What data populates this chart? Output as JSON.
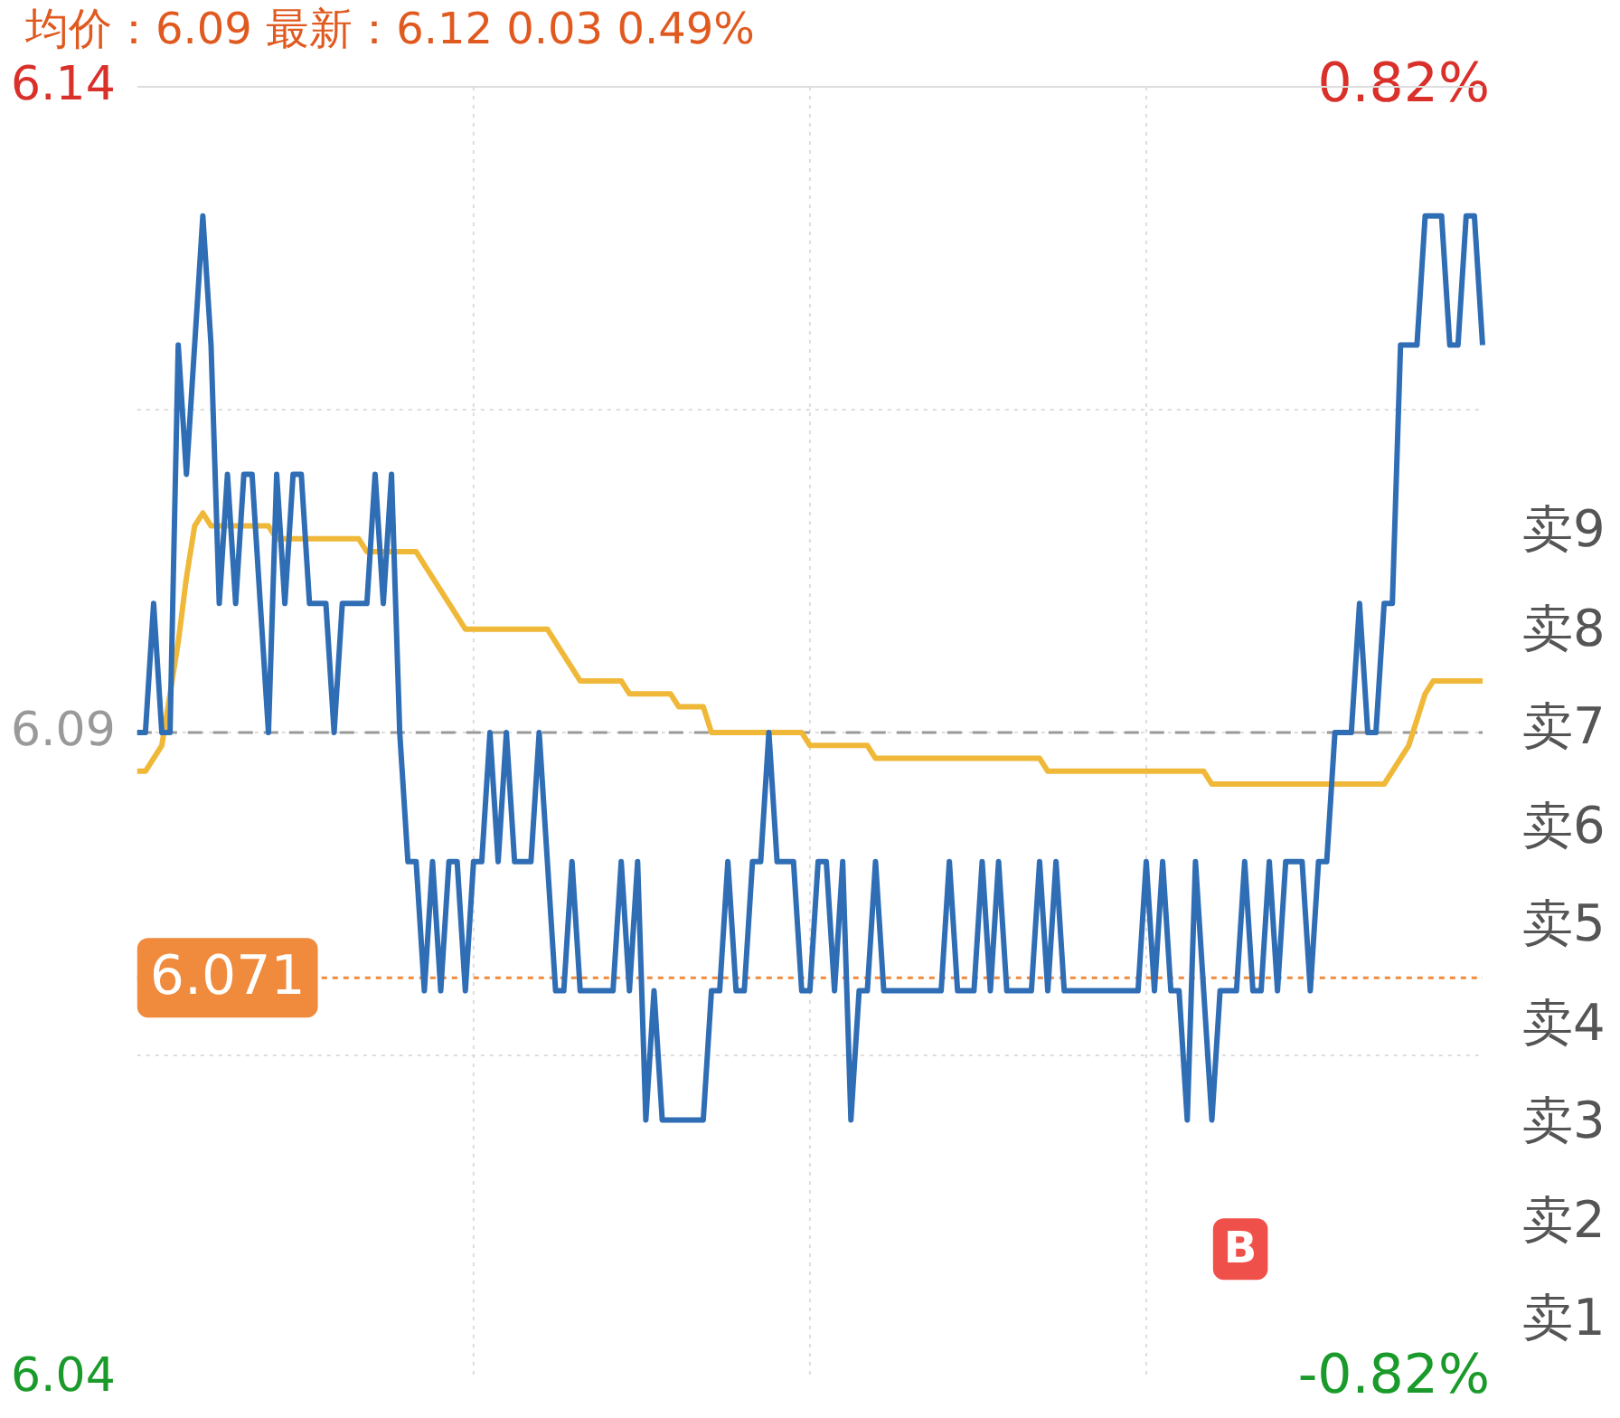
{
  "chart_data": {
    "type": "line",
    "title": "均价：6.09 最新：6.12 0.03 0.49%",
    "categories": [
      null,
      null,
      null,
      null,
      null,
      null,
      null,
      null,
      null,
      null,
      null,
      null,
      null,
      null,
      null,
      null,
      null,
      null,
      null,
      null,
      null,
      null,
      null,
      null,
      null,
      null,
      null,
      null,
      null,
      null,
      null,
      null,
      null,
      null,
      null,
      null,
      null,
      null,
      null,
      null,
      null,
      null,
      null,
      null,
      null,
      null,
      null,
      null,
      null,
      null,
      null,
      null,
      null,
      null,
      null,
      null,
      null,
      null,
      null,
      null,
      null,
      null,
      null,
      null,
      null,
      null,
      null,
      null,
      null,
      null,
      null,
      null,
      null,
      null,
      null,
      null,
      null,
      null,
      null,
      null,
      null,
      null,
      null,
      null,
      null,
      null,
      null,
      null,
      null,
      null,
      null,
      null,
      null,
      null,
      null,
      null,
      null,
      null,
      null,
      null,
      null,
      null,
      null,
      null,
      null,
      null,
      null,
      null,
      null,
      null,
      null,
      null,
      null,
      null,
      null,
      null,
      null,
      null,
      null,
      null,
      null,
      null,
      null,
      null,
      null,
      null,
      null,
      null,
      null,
      null,
      null,
      null,
      null,
      null,
      null,
      null,
      null,
      null,
      null,
      null,
      null,
      null,
      null,
      null,
      null,
      null,
      null,
      null,
      null,
      null,
      null,
      null,
      null,
      null,
      null,
      null,
      null,
      null,
      null,
      null,
      null,
      null,
      null,
      null,
      null
    ],
    "series": [
      {
        "color": "#2f6db5",
        "values": [
          6.09,
          6.09,
          6.1,
          6.09,
          6.09,
          6.12,
          6.11,
          6.12,
          6.13,
          6.12,
          6.1,
          6.11,
          6.1,
          6.11,
          6.11,
          6.1,
          6.09,
          6.11,
          6.1,
          6.11,
          6.11,
          6.1,
          6.1,
          6.1,
          6.09,
          6.1,
          6.1,
          6.1,
          6.1,
          6.11,
          6.1,
          6.11,
          6.09,
          6.08,
          6.08,
          6.07,
          6.08,
          6.07,
          6.08,
          6.08,
          6.07,
          6.08,
          6.08,
          6.09,
          6.08,
          6.09,
          6.08,
          6.08,
          6.08,
          6.09,
          6.08,
          6.07,
          6.07,
          6.08,
          6.07,
          6.07,
          6.07,
          6.07,
          6.07,
          6.08,
          6.07,
          6.08,
          6.06,
          6.07,
          6.06,
          6.06,
          6.06,
          6.06,
          6.06,
          6.06,
          6.07,
          6.07,
          6.08,
          6.07,
          6.07,
          6.08,
          6.08,
          6.09,
          6.08,
          6.08,
          6.08,
          6.07,
          6.07,
          6.08,
          6.08,
          6.07,
          6.08,
          6.06,
          6.07,
          6.07,
          6.08,
          6.07,
          6.07,
          6.07,
          6.07,
          6.07,
          6.07,
          6.07,
          6.07,
          6.08,
          6.07,
          6.07,
          6.07,
          6.08,
          6.07,
          6.08,
          6.07,
          6.07,
          6.07,
          6.07,
          6.08,
          6.07,
          6.08,
          6.07,
          6.07,
          6.07,
          6.07,
          6.07,
          6.07,
          6.07,
          6.07,
          6.07,
          6.07,
          6.08,
          6.07,
          6.08,
          6.07,
          6.07,
          6.06,
          6.08,
          6.07,
          6.06,
          6.07,
          6.07,
          6.07,
          6.08,
          6.07,
          6.07,
          6.08,
          6.07,
          6.08,
          6.08,
          6.08,
          6.07,
          6.08,
          6.08,
          6.09,
          6.09,
          6.09,
          6.1,
          6.09,
          6.09,
          6.1,
          6.1,
          6.12,
          6.12,
          6.12,
          6.13,
          6.13,
          6.13,
          6.12,
          6.12,
          6.13,
          6.13,
          6.12
        ]
      },
      {
        "color": "#f0b838",
        "values": [
          6.087,
          6.087,
          6.088,
          6.089,
          6.093,
          6.097,
          6.102,
          6.106,
          6.107,
          6.106,
          6.106,
          6.106,
          6.106,
          6.106,
          6.106,
          6.106,
          6.106,
          6.105,
          6.105,
          6.105,
          6.105,
          6.105,
          6.105,
          6.105,
          6.105,
          6.105,
          6.105,
          6.105,
          6.104,
          6.104,
          6.104,
          6.104,
          6.104,
          6.104,
          6.104,
          6.103,
          6.102,
          6.101,
          6.1,
          6.099,
          6.098,
          6.098,
          6.098,
          6.098,
          6.098,
          6.098,
          6.098,
          6.098,
          6.098,
          6.098,
          6.098,
          6.097,
          6.096,
          6.095,
          6.094,
          6.094,
          6.094,
          6.094,
          6.094,
          6.094,
          6.093,
          6.093,
          6.093,
          6.093,
          6.093,
          6.093,
          6.092,
          6.092,
          6.092,
          6.092,
          6.09,
          6.09,
          6.09,
          6.09,
          6.09,
          6.09,
          6.09,
          6.09,
          6.09,
          6.09,
          6.09,
          6.09,
          6.089,
          6.089,
          6.089,
          6.089,
          6.089,
          6.089,
          6.089,
          6.089,
          6.088,
          6.088,
          6.088,
          6.088,
          6.088,
          6.088,
          6.088,
          6.088,
          6.088,
          6.088,
          6.088,
          6.088,
          6.088,
          6.088,
          6.088,
          6.088,
          6.088,
          6.088,
          6.088,
          6.088,
          6.088,
          6.087,
          6.087,
          6.087,
          6.087,
          6.087,
          6.087,
          6.087,
          6.087,
          6.087,
          6.087,
          6.087,
          6.087,
          6.087,
          6.087,
          6.087,
          6.087,
          6.087,
          6.087,
          6.087,
          6.087,
          6.086,
          6.086,
          6.086,
          6.086,
          6.086,
          6.086,
          6.086,
          6.086,
          6.086,
          6.086,
          6.086,
          6.086,
          6.086,
          6.086,
          6.086,
          6.086,
          6.086,
          6.086,
          6.086,
          6.086,
          6.086,
          6.086,
          6.087,
          6.088,
          6.089,
          6.091,
          6.093,
          6.094,
          6.094,
          6.094,
          6.094,
          6.094,
          6.094,
          6.094
        ]
      }
    ],
    "ylim": [
      6.04,
      6.14
    ],
    "yticks": [
      6.14,
      6.09,
      6.04
    ],
    "y2lim": [
      -0.82,
      0.82
    ],
    "y2ticks": [
      {
        "value": 0.82,
        "label": "0.82%"
      },
      {
        "value": -0.82,
        "label": "-0.82%"
      }
    ],
    "ref_lines": [
      {
        "axis": "y",
        "value": 6.09,
        "color": "#999999",
        "line_style": "dashed"
      },
      {
        "axis": "y",
        "value": 6.071,
        "label": "6.071",
        "color": "#f08a3c",
        "line_style": "dotted"
      }
    ],
    "annotations": [
      {
        "text": "B",
        "y": 6.05
      },
      "卖9",
      "卖8",
      "卖7",
      "卖6",
      "卖5",
      "卖4",
      "卖3",
      "卖2",
      "卖1"
    ],
    "grid": true,
    "legend": false,
    "marker": "none",
    "line_style": "solid"
  }
}
